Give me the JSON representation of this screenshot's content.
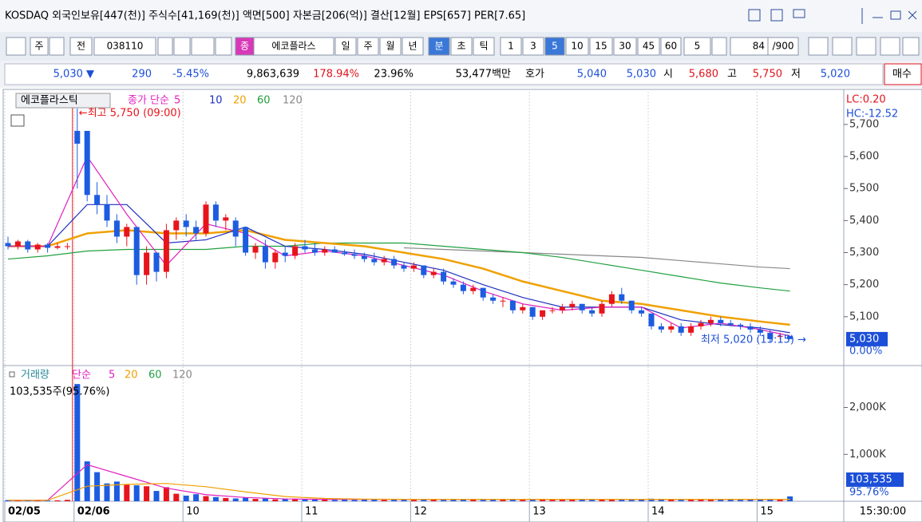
{
  "header": {
    "info": "KOSDAQ 외국인보유[447(천)] 주식수[41,169(천)] 액면[500] 자본금[206(억)] 결산[12월] EPS[657] PER[7.65]"
  },
  "toolbar": {
    "items": [
      "주",
      "전",
      "038110",
      "종",
      "에코플라스",
      "일",
      "주",
      "월",
      "년",
      "분",
      "초",
      "틱",
      "1",
      "3",
      "5",
      "10",
      "15",
      "30",
      "45",
      "60",
      "5",
      "84",
      "/900"
    ],
    "selected": [
      9,
      14
    ]
  },
  "quote": {
    "items": [
      {
        "text": "5,030 ▼",
        "color": "#1c4fd8"
      },
      {
        "text": "290",
        "color": "#1c4fd8"
      },
      {
        "text": "-5.45%",
        "color": "#1c4fd8"
      },
      {
        "text": "9,863,639",
        "color": "#000000"
      },
      {
        "text": "178.94%",
        "color": "#e0141c"
      },
      {
        "text": "23.96%",
        "color": "#000000"
      },
      {
        "text": "53,477백만",
        "color": "#000000"
      },
      {
        "text": "호가",
        "color": "#000000"
      },
      {
        "text": "5,040",
        "color": "#1c4fd8"
      },
      {
        "text": "5,030",
        "color": "#1c4fd8"
      },
      {
        "text": "시",
        "color": "#000000"
      },
      {
        "text": "5,680",
        "color": "#e0141c"
      },
      {
        "text": "고",
        "color": "#000000"
      },
      {
        "text": "5,750",
        "color": "#e0141c"
      },
      {
        "text": "저",
        "color": "#000000"
      },
      {
        "text": "5,020",
        "color": "#1c4fd8"
      },
      {
        "text": "매수",
        "color": "#000000"
      }
    ]
  },
  "price_chart": {
    "type": "candlestick",
    "name": "에코플라스틱",
    "ma_title": "종가 단순",
    "lc": "LC:0.20",
    "hc": "HC:-12.52",
    "high_note": "←최고 5,750 (09:00)",
    "low_note": "최저 5,020 (15:15) →",
    "up_color": "#e8141c",
    "down_color": "#1c5ce0",
    "ylim": [
      4955,
      5802
    ],
    "yticks": [
      {
        "value": 5700,
        "label": "5,700"
      },
      {
        "value": 5600,
        "label": "5,600"
      },
      {
        "value": 5500,
        "label": "5,500"
      },
      {
        "value": 5400,
        "label": "5,400"
      },
      {
        "value": 5300,
        "label": "5,300"
      },
      {
        "value": 5200,
        "label": "5,200"
      },
      {
        "value": 5100,
        "label": "5,100"
      }
    ],
    "current": {
      "value": 5030,
      "label": "5,030"
    },
    "current_change": "0.00%",
    "categories": [
      "02/05",
      null,
      null,
      null,
      null,
      null,
      null,
      "02/06",
      null,
      null,
      null,
      null,
      null,
      null,
      null,
      null,
      null,
      null,
      "10",
      null,
      null,
      null,
      null,
      null,
      null,
      null,
      null,
      null,
      null,
      null,
      "11",
      null,
      null,
      null,
      null,
      null,
      null,
      null,
      null,
      null,
      null,
      "12",
      null,
      null,
      null,
      null,
      null,
      null,
      null,
      null,
      null,
      null,
      null,
      "13",
      null,
      null,
      null,
      null,
      null,
      null,
      null,
      null,
      null,
      null,
      null,
      "14",
      null,
      null,
      null,
      null,
      null,
      null,
      null,
      null,
      null,
      null,
      "15",
      null,
      null,
      null
    ],
    "time_label": "15:30:00",
    "candles": [
      [
        5330,
        5350,
        5310,
        5320
      ],
      [
        5320,
        5340,
        5310,
        5335
      ],
      [
        5335,
        5340,
        5300,
        5310
      ],
      [
        5310,
        5330,
        5300,
        5325
      ],
      [
        5325,
        5330,
        5300,
        5315
      ],
      [
        5315,
        5330,
        5310,
        5320
      ],
      [
        5320,
        5330,
        5310,
        5320
      ],
      [
        5680,
        5750,
        5500,
        5640
      ],
      [
        5680,
        5680,
        5460,
        5480
      ],
      [
        5480,
        5520,
        5420,
        5450
      ],
      [
        5450,
        5480,
        5380,
        5400
      ],
      [
        5400,
        5420,
        5330,
        5350
      ],
      [
        5350,
        5390,
        5320,
        5380
      ],
      [
        5380,
        5380,
        5200,
        5230
      ],
      [
        5230,
        5320,
        5200,
        5300
      ],
      [
        5300,
        5300,
        5210,
        5240
      ],
      [
        5240,
        5390,
        5220,
        5370
      ],
      [
        5370,
        5410,
        5340,
        5400
      ],
      [
        5400,
        5420,
        5350,
        5380
      ],
      [
        5380,
        5400,
        5340,
        5360
      ],
      [
        5360,
        5460,
        5350,
        5450
      ],
      [
        5450,
        5460,
        5380,
        5400
      ],
      [
        5400,
        5420,
        5370,
        5410
      ],
      [
        5400,
        5410,
        5320,
        5350
      ],
      [
        5380,
        5380,
        5290,
        5300
      ],
      [
        5300,
        5330,
        5280,
        5320
      ],
      [
        5320,
        5340,
        5250,
        5270
      ],
      [
        5270,
        5310,
        5250,
        5300
      ],
      [
        5300,
        5320,
        5270,
        5290
      ],
      [
        5290,
        5330,
        5280,
        5320
      ],
      [
        5320,
        5340,
        5300,
        5310
      ],
      [
        5310,
        5330,
        5290,
        5300
      ],
      [
        5300,
        5320,
        5290,
        5310
      ],
      [
        5310,
        5320,
        5300,
        5300
      ],
      [
        5300,
        5310,
        5290,
        5295
      ],
      [
        5295,
        5310,
        5280,
        5290
      ],
      [
        5290,
        5300,
        5270,
        5280
      ],
      [
        5280,
        5300,
        5260,
        5270
      ],
      [
        5270,
        5290,
        5260,
        5280
      ],
      [
        5280,
        5290,
        5250,
        5260
      ],
      [
        5260,
        5270,
        5240,
        5250
      ],
      [
        5250,
        5270,
        5240,
        5260
      ],
      [
        5260,
        5260,
        5220,
        5230
      ],
      [
        5230,
        5250,
        5220,
        5240
      ],
      [
        5240,
        5250,
        5200,
        5210
      ],
      [
        5210,
        5220,
        5190,
        5200
      ],
      [
        5200,
        5210,
        5170,
        5180
      ],
      [
        5180,
        5200,
        5170,
        5190
      ],
      [
        5190,
        5190,
        5150,
        5160
      ],
      [
        5160,
        5170,
        5140,
        5150
      ],
      [
        5150,
        5160,
        5130,
        5150
      ],
      [
        5150,
        5150,
        5110,
        5120
      ],
      [
        5120,
        5140,
        5110,
        5130
      ],
      [
        5130,
        5130,
        5090,
        5100
      ],
      [
        5100,
        5120,
        5090,
        5120
      ],
      [
        5120,
        5130,
        5110,
        5120
      ],
      [
        5120,
        5140,
        5110,
        5130
      ],
      [
        5130,
        5150,
        5120,
        5140
      ],
      [
        5140,
        5140,
        5110,
        5120
      ],
      [
        5120,
        5130,
        5100,
        5110
      ],
      [
        5110,
        5150,
        5100,
        5140
      ],
      [
        5140,
        5180,
        5130,
        5170
      ],
      [
        5170,
        5190,
        5140,
        5150
      ],
      [
        5150,
        5150,
        5110,
        5120
      ],
      [
        5120,
        5130,
        5100,
        5110
      ],
      [
        5110,
        5110,
        5060,
        5070
      ],
      [
        5070,
        5080,
        5050,
        5060
      ],
      [
        5060,
        5080,
        5050,
        5070
      ],
      [
        5070,
        5080,
        5040,
        5050
      ],
      [
        5050,
        5080,
        5040,
        5070
      ],
      [
        5070,
        5090,
        5060,
        5080
      ],
      [
        5080,
        5100,
        5070,
        5090
      ],
      [
        5090,
        5100,
        5070,
        5080
      ],
      [
        5080,
        5090,
        5070,
        5075
      ],
      [
        5075,
        5080,
        5060,
        5070
      ],
      [
        5070,
        5080,
        5050,
        5060
      ],
      [
        5060,
        5070,
        5040,
        5050
      ],
      [
        5050,
        5060,
        5020,
        5030
      ],
      [
        5040,
        5050,
        5030,
        5040
      ],
      [
        5040,
        5040,
        5030,
        5030
      ]
    ],
    "ma_x": [
      0,
      4,
      8,
      12,
      16,
      20,
      24,
      28,
      32,
      36,
      40,
      44,
      48,
      52,
      56,
      60,
      64,
      68,
      72,
      76,
      79
    ],
    "ma": [
      {
        "name": "5",
        "color": "#e020c0",
        "width": 1.2,
        "values": [
          5320,
          5320,
          5600,
          5420,
          5260,
          5390,
          5360,
          5290,
          5305,
          5290,
          5260,
          5230,
          5180,
          5140,
          5120,
          5130,
          5130,
          5065,
          5080,
          5060,
          5040
        ]
      },
      {
        "name": "10",
        "color": "#2030c0",
        "width": 1.2,
        "values": [
          5320,
          5320,
          5450,
          5450,
          5330,
          5340,
          5380,
          5320,
          5310,
          5295,
          5270,
          5245,
          5200,
          5160,
          5130,
          5130,
          5130,
          5090,
          5075,
          5065,
          5050
        ]
      },
      {
        "name": "20",
        "color": "#f0a000",
        "width": 2.5,
        "values": [
          5320,
          5320,
          5360,
          5370,
          5360,
          5360,
          5370,
          5340,
          5330,
          5320,
          5300,
          5280,
          5250,
          5210,
          5180,
          5150,
          5140,
          5120,
          5100,
          5085,
          5075
        ]
      },
      {
        "name": "60",
        "color": "#20a040",
        "width": 1.2,
        "values": [
          5280,
          5290,
          5305,
          5310,
          5310,
          5310,
          5320,
          5320,
          5330,
          5330,
          5330,
          5320,
          5310,
          5300,
          5285,
          5265,
          5245,
          5225,
          5205,
          5190,
          5180
        ]
      },
      {
        "name": "120",
        "color": "#888888",
        "width": 1.2,
        "values": [
          null,
          null,
          null,
          null,
          null,
          null,
          null,
          null,
          null,
          null,
          5315,
          5310,
          5305,
          5300,
          5295,
          5290,
          5285,
          5275,
          5265,
          5255,
          5250
        ]
      }
    ]
  },
  "volume_chart": {
    "type": "bar",
    "name": "거래량",
    "ma_title": "단순",
    "ma_names": [
      {
        "name": "5",
        "color": "#e020c0"
      },
      {
        "name": "20",
        "color": "#f0a000"
      },
      {
        "name": "60",
        "color": "#20a040"
      },
      {
        "name": "120",
        "color": "#888888"
      }
    ],
    "summary": "103,535주(95.76%)",
    "ylim": [
      0,
      2860
    ],
    "yticks": [
      {
        "value": 2000,
        "label": "2,000K"
      },
      {
        "value": 1000,
        "label": "1,000K"
      }
    ],
    "current": {
      "value": 103.535,
      "label": "103,535"
    },
    "current_pct": "95.76%",
    "values": [
      25,
      20,
      15,
      20,
      15,
      20,
      30,
      2500,
      850,
      620,
      380,
      420,
      360,
      340,
      320,
      220,
      300,
      160,
      120,
      150,
      110,
      90,
      70,
      60,
      80,
      50,
      60,
      40,
      50,
      45,
      40,
      35,
      40,
      30,
      35,
      30,
      40,
      35,
      30,
      40,
      35,
      30,
      40,
      35,
      30,
      45,
      35,
      40,
      30,
      35,
      40,
      35,
      30,
      45,
      40,
      30,
      35,
      40,
      45,
      30,
      40,
      50,
      35,
      30,
      40,
      55,
      40,
      35,
      30,
      40,
      35,
      30,
      40,
      35,
      30,
      40,
      45,
      50,
      40,
      103.535
    ],
    "ma": [
      {
        "name": "5",
        "color": "#e020c0",
        "values": [
          20,
          20,
          780,
          530,
          280,
          140,
          80,
          50,
          40,
          40,
          40,
          40,
          40,
          40,
          40,
          40,
          40,
          40,
          40,
          40,
          40
        ]
      },
      {
        "name": "20",
        "color": "#f0a000",
        "values": [
          20,
          20,
          320,
          360,
          380,
          310,
          200,
          100,
          60,
          45,
          40,
          40,
          40,
          40,
          40,
          40,
          40,
          40,
          40,
          40,
          40
        ]
      }
    ]
  }
}
